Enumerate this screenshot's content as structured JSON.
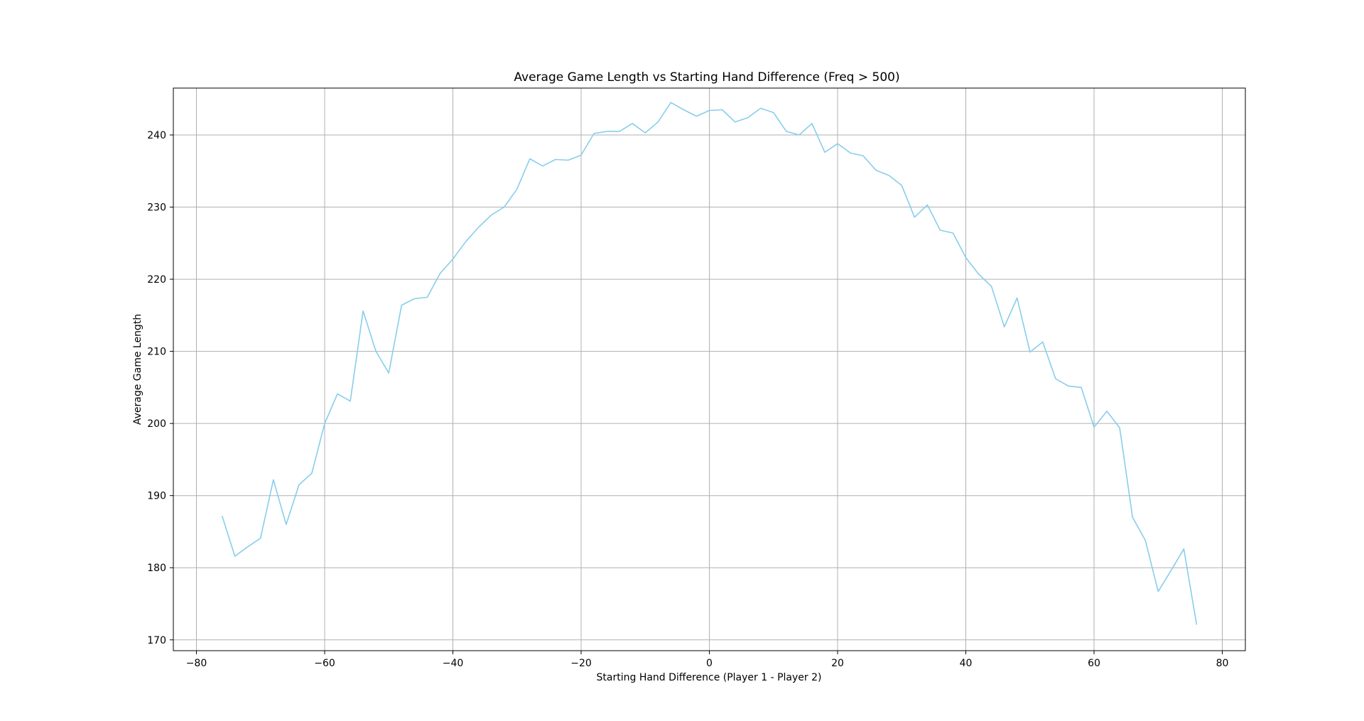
{
  "chart_data": {
    "type": "line",
    "title": "Average Game Length vs Starting Hand Difference (Freq > 500)",
    "xlabel": "Starting Hand Difference (Player 1 - Player 2)",
    "ylabel": "Average Game Length",
    "xlim": [
      -83.6,
      83.6
    ],
    "ylim": [
      168.5,
      246.5
    ],
    "xticks": [
      -80,
      -60,
      -40,
      -20,
      0,
      20,
      40,
      60,
      80
    ],
    "xtick_labels": [
      "−80",
      "−60",
      "−40",
      "−20",
      "0",
      "20",
      "40",
      "60",
      "80"
    ],
    "yticks": [
      170,
      180,
      190,
      200,
      210,
      220,
      230,
      240
    ],
    "ytick_labels": [
      "170",
      "180",
      "190",
      "200",
      "210",
      "220",
      "230",
      "240"
    ],
    "grid": true,
    "legend": "none",
    "series": [
      {
        "color": "#87ceeb",
        "x": [
          -76,
          -74,
          -72,
          -70,
          -68,
          -66,
          -64,
          -62,
          -60,
          -58,
          -56,
          -54,
          -52,
          -50,
          -48,
          -46,
          -44,
          -42,
          -40,
          -38,
          -36,
          -34,
          -32,
          -30,
          -28,
          -26,
          -24,
          -22,
          -20,
          -18,
          -16,
          -14,
          -12,
          -10,
          -8,
          -6,
          -4,
          -2,
          0,
          2,
          4,
          6,
          8,
          10,
          12,
          14,
          16,
          18,
          20,
          22,
          24,
          26,
          28,
          30,
          32,
          34,
          36,
          38,
          40,
          42,
          44,
          46,
          48,
          50,
          52,
          54,
          56,
          58,
          60,
          62,
          64,
          66,
          68,
          70,
          72,
          74,
          76
        ],
        "y": [
          187.2,
          181.6,
          182.9,
          184.1,
          192.2,
          186.0,
          191.5,
          193.1,
          200.0,
          204.1,
          203.1,
          215.6,
          210.0,
          207.0,
          216.4,
          217.3,
          217.5,
          220.8,
          222.8,
          225.2,
          227.2,
          228.9,
          230.0,
          232.5,
          236.7,
          235.7,
          236.6,
          236.5,
          237.2,
          240.2,
          240.5,
          240.5,
          241.6,
          240.3,
          241.8,
          244.5,
          243.5,
          242.6,
          243.4,
          243.5,
          241.8,
          242.4,
          243.7,
          243.1,
          240.5,
          240.0,
          241.6,
          237.6,
          238.8,
          237.5,
          237.1,
          235.1,
          234.4,
          233.0,
          228.6,
          230.3,
          226.8,
          226.4,
          223.0,
          220.7,
          219.0,
          213.4,
          217.4,
          209.9,
          211.3,
          206.2,
          205.2,
          205.0,
          199.5,
          201.7,
          199.4,
          187.0,
          183.8,
          176.7,
          179.6,
          182.6,
          172.1
        ]
      }
    ]
  }
}
